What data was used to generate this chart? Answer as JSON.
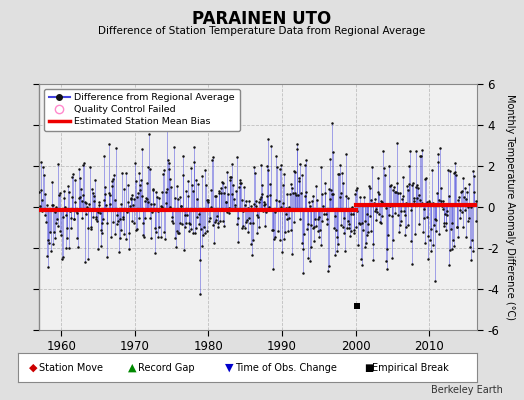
{
  "title": "PARAINEN UTO",
  "subtitle": "Difference of Station Temperature Data from Regional Average",
  "ylabel": "Monthly Temperature Anomaly Difference (°C)",
  "xlabel_ticks": [
    1960,
    1970,
    1980,
    1990,
    2000,
    2010
  ],
  "ylim": [
    -6,
    6
  ],
  "xlim": [
    1957.0,
    2016.5
  ],
  "yticks": [
    -6,
    -4,
    -2,
    0,
    2,
    4,
    6
  ],
  "bias1_start": 1957.0,
  "bias1_end": 2000.0,
  "bias1_value": -0.15,
  "bias2_start": 2000.0,
  "bias2_end": 2016.5,
  "bias2_value": 0.1,
  "background_color": "#e0e0e0",
  "plot_bg_color": "#f0f0f0",
  "line_color": "#4444dd",
  "line_alpha": 0.55,
  "line_width": 0.6,
  "dot_color": "#111111",
  "dot_size": 1.8,
  "bias_color": "#ee0000",
  "bias_linewidth": 3.0,
  "grid_color": "#c0c0c0",
  "grid_linestyle": "--",
  "grid_linewidth": 0.6,
  "empirical_break_year": 2000.2,
  "empirical_break_y": -4.85,
  "seed": 42,
  "start_year": 1957,
  "end_year": 2016
}
